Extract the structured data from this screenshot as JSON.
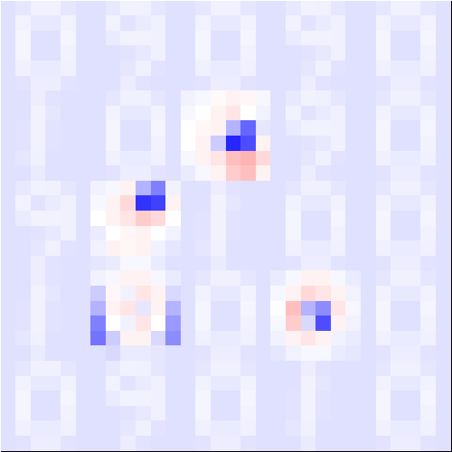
{
  "chart_data": {
    "type": "heatmap",
    "grid": true,
    "tick_labels": false,
    "legend": "none",
    "color_range": [
      -100,
      100
    ],
    "panels": [
      [
        [
          [
            -12,
            -10,
            -6,
            -6,
            -10,
            -12
          ],
          [
            -12,
            -5,
            -9,
            -9,
            -5,
            -12
          ],
          [
            -12,
            -4,
            -12,
            -12,
            -4,
            -12
          ],
          [
            -12,
            -4,
            -12,
            -12,
            -5,
            -12
          ],
          [
            -12,
            -6,
            -8,
            -8,
            -6,
            -12
          ],
          [
            -12,
            -11,
            -7,
            -7,
            -11,
            -12
          ]
        ],
        [
          [
            -12,
            -9,
            -5,
            -6,
            -10,
            -12
          ],
          [
            -12,
            -5,
            -11,
            -8,
            -6,
            -12
          ],
          [
            -12,
            -8,
            -5,
            -5,
            -6,
            -12
          ],
          [
            -12,
            -12,
            -11,
            -9,
            -6,
            -12
          ],
          [
            -12,
            -12,
            -10,
            -6,
            -11,
            -12
          ],
          [
            -12,
            -12,
            -7,
            -11,
            -12,
            -12
          ]
        ],
        [
          [
            -12,
            -10,
            -6,
            -6,
            -10,
            -12
          ],
          [
            -12,
            -5,
            -9,
            -9,
            -5,
            -12
          ],
          [
            -12,
            -4,
            -12,
            -12,
            -4,
            -12
          ],
          [
            -12,
            -4,
            -12,
            -12,
            -5,
            -12
          ],
          [
            -12,
            -6,
            -8,
            -8,
            -6,
            -12
          ],
          [
            -12,
            -11,
            -7,
            -7,
            -11,
            -12
          ]
        ],
        [
          [
            -12,
            -9,
            -5,
            -6,
            -10,
            -12
          ],
          [
            -12,
            -5,
            -11,
            -8,
            -6,
            -12
          ],
          [
            -12,
            -8,
            -5,
            -5,
            -6,
            -12
          ],
          [
            -12,
            -12,
            -11,
            -9,
            -6,
            -12
          ],
          [
            -12,
            -12,
            -10,
            -6,
            -11,
            -12
          ],
          [
            -12,
            -12,
            -7,
            -11,
            -12,
            -12
          ]
        ],
        [
          [
            -12,
            -10,
            -6,
            -6,
            -10,
            -12
          ],
          [
            -12,
            -5,
            -9,
            -9,
            -5,
            -12
          ],
          [
            -12,
            -4,
            -12,
            -12,
            -4,
            -12
          ],
          [
            -12,
            -4,
            -12,
            -12,
            -5,
            -12
          ],
          [
            -12,
            -6,
            -8,
            -8,
            -6,
            -12
          ],
          [
            -12,
            -11,
            -7,
            -7,
            -11,
            -12
          ]
        ]
      ],
      [
        [
          [
            -12,
            -12,
            -7,
            -11,
            -12,
            -12
          ],
          [
            -12,
            -12,
            -5,
            -10,
            -12,
            -12
          ],
          [
            -12,
            -11,
            -5,
            -11,
            -12,
            -12
          ],
          [
            -12,
            -11,
            -5,
            -11,
            -12,
            -12
          ],
          [
            -12,
            -10,
            -6,
            -12,
            -12,
            -12
          ],
          [
            -12,
            -12,
            -8,
            -12,
            -12,
            -12
          ]
        ],
        [
          [
            -12,
            -10,
            -6,
            -6,
            -10,
            -12
          ],
          [
            -12,
            -5,
            -9,
            -9,
            -5,
            -12
          ],
          [
            -12,
            -4,
            -12,
            -12,
            -4,
            -12
          ],
          [
            -12,
            -4,
            -12,
            -12,
            -5,
            -12
          ],
          [
            -12,
            -6,
            -8,
            -8,
            -6,
            -12
          ],
          [
            -12,
            -11,
            -7,
            -7,
            -11,
            -12
          ]
        ],
        [
          [
            -5,
            -3,
            2,
            5,
            3,
            -3
          ],
          [
            -3,
            0,
            5,
            10,
            0,
            -5
          ],
          [
            0,
            3,
            5,
            -30,
            -60,
            -10
          ],
          [
            0,
            5,
            -20,
            -85,
            -70,
            5
          ],
          [
            -3,
            5,
            10,
            25,
            30,
            15
          ],
          [
            -8,
            -3,
            5,
            20,
            25,
            5
          ]
        ],
        [
          [
            -12,
            -9,
            -5,
            -6,
            -10,
            -12
          ],
          [
            -12,
            -5,
            -11,
            -8,
            -6,
            -12
          ],
          [
            -12,
            -8,
            -5,
            -5,
            -6,
            -12
          ],
          [
            -12,
            -12,
            -11,
            -9,
            -6,
            -12
          ],
          [
            -12,
            -12,
            -10,
            -6,
            -11,
            -12
          ],
          [
            -12,
            -12,
            -7,
            -11,
            -12,
            -12
          ]
        ],
        [
          [
            -12,
            -10,
            -6,
            -6,
            -10,
            -12
          ],
          [
            -12,
            -5,
            -9,
            -9,
            -5,
            -12
          ],
          [
            -12,
            -4,
            -12,
            -12,
            -4,
            -12
          ],
          [
            -12,
            -4,
            -12,
            -12,
            -5,
            -12
          ],
          [
            -12,
            -6,
            -8,
            -8,
            -6,
            -12
          ],
          [
            -12,
            -11,
            -7,
            -7,
            -11,
            -12
          ]
        ]
      ],
      [
        [
          [
            -12,
            -9,
            -5,
            -6,
            -10,
            -12
          ],
          [
            -12,
            -5,
            -11,
            -8,
            -6,
            -12
          ],
          [
            -12,
            -8,
            -5,
            -5,
            -6,
            -12
          ],
          [
            -12,
            -12,
            -11,
            -9,
            -6,
            -12
          ],
          [
            -12,
            -12,
            -10,
            -6,
            -11,
            -12
          ],
          [
            -12,
            -12,
            -7,
            -11,
            -12,
            -12
          ]
        ],
        [
          [
            -5,
            -3,
            5,
            -30,
            -50,
            -5
          ],
          [
            -3,
            5,
            15,
            -80,
            -75,
            5
          ],
          [
            0,
            5,
            10,
            20,
            15,
            0
          ],
          [
            -8,
            0,
            3,
            5,
            0,
            -5
          ],
          [
            -5,
            5,
            3,
            5,
            -5,
            -10
          ],
          [
            -10,
            -8,
            -3,
            -3,
            -8,
            -12
          ]
        ],
        [
          [
            -12,
            -12,
            -7,
            -11,
            -12,
            -12
          ],
          [
            -12,
            -12,
            -5,
            -10,
            -12,
            -12
          ],
          [
            -12,
            -11,
            -5,
            -11,
            -12,
            -12
          ],
          [
            -12,
            -11,
            -5,
            -11,
            -12,
            -12
          ],
          [
            -12,
            -10,
            -6,
            -12,
            -12,
            -12
          ],
          [
            -12,
            -12,
            -8,
            -12,
            -12,
            -12
          ]
        ],
        [
          [
            -12,
            -10,
            -6,
            -6,
            -10,
            -12
          ],
          [
            -12,
            -5,
            -9,
            -9,
            -5,
            -12
          ],
          [
            -12,
            -4,
            -12,
            -12,
            -4,
            -12
          ],
          [
            -12,
            -4,
            -12,
            -12,
            -5,
            -12
          ],
          [
            -12,
            -6,
            -8,
            -8,
            -6,
            -12
          ],
          [
            -12,
            -11,
            -7,
            -7,
            -11,
            -12
          ]
        ],
        [
          [
            -12,
            -10,
            -6,
            -6,
            -10,
            -12
          ],
          [
            -12,
            -5,
            -9,
            -9,
            -5,
            -12
          ],
          [
            -12,
            -4,
            -12,
            -12,
            -4,
            -12
          ],
          [
            -12,
            -4,
            -12,
            -12,
            -5,
            -12
          ],
          [
            -12,
            -6,
            -8,
            -8,
            -6,
            -12
          ],
          [
            -12,
            -11,
            -7,
            -7,
            -11,
            -12
          ]
        ]
      ],
      [
        [
          [
            -12,
            -12,
            -7,
            -11,
            -12,
            -12
          ],
          [
            -12,
            -12,
            -5,
            -10,
            -12,
            -12
          ],
          [
            -12,
            -11,
            -5,
            -11,
            -12,
            -12
          ],
          [
            -12,
            -11,
            -5,
            -11,
            -12,
            -12
          ],
          [
            -12,
            -10,
            -6,
            -12,
            -12,
            -12
          ],
          [
            -12,
            -12,
            -8,
            -12,
            -12,
            -12
          ]
        ],
        [
          [
            -5,
            -3,
            5,
            5,
            -3,
            -8
          ],
          [
            -20,
            3,
            -5,
            10,
            5,
            -15
          ],
          [
            -30,
            5,
            10,
            -10,
            5,
            -30
          ],
          [
            -50,
            0,
            -5,
            10,
            0,
            -40
          ],
          [
            -55,
            -20,
            5,
            5,
            -15,
            -45
          ],
          [
            -12,
            -15,
            -8,
            -8,
            -10,
            -12
          ]
        ],
        [
          [
            -12,
            -10,
            -6,
            -6,
            -10,
            -12
          ],
          [
            -12,
            -5,
            -9,
            -9,
            -5,
            -12
          ],
          [
            -12,
            -4,
            -12,
            -12,
            -4,
            -12
          ],
          [
            -12,
            -4,
            -12,
            -12,
            -5,
            -12
          ],
          [
            -12,
            -6,
            -8,
            -8,
            -6,
            -12
          ],
          [
            -12,
            -11,
            -7,
            -7,
            -11,
            -12
          ]
        ],
        [
          [
            -8,
            -3,
            5,
            5,
            -3,
            -8
          ],
          [
            -3,
            5,
            15,
            10,
            5,
            -5
          ],
          [
            0,
            25,
            -30,
            -45,
            10,
            -3
          ],
          [
            -3,
            20,
            -15,
            -70,
            5,
            -5
          ],
          [
            -5,
            5,
            10,
            5,
            -5,
            -8
          ],
          [
            -10,
            -5,
            -3,
            -3,
            -8,
            -10
          ]
        ],
        [
          [
            -12,
            -10,
            -6,
            -6,
            -10,
            -12
          ],
          [
            -12,
            -5,
            -9,
            -9,
            -5,
            -12
          ],
          [
            -12,
            -4,
            -12,
            -12,
            -4,
            -12
          ],
          [
            -12,
            -4,
            -12,
            -12,
            -5,
            -12
          ],
          [
            -12,
            -6,
            -8,
            -8,
            -6,
            -12
          ],
          [
            -12,
            -11,
            -7,
            -7,
            -11,
            -12
          ]
        ]
      ],
      [
        [
          [
            -12,
            -10,
            -6,
            -6,
            -10,
            -12
          ],
          [
            -12,
            -5,
            -9,
            -9,
            -5,
            -12
          ],
          [
            -12,
            -4,
            -12,
            -12,
            -4,
            -12
          ],
          [
            -12,
            -4,
            -12,
            -12,
            -5,
            -12
          ],
          [
            -12,
            -6,
            -8,
            -8,
            -6,
            -12
          ],
          [
            -12,
            -11,
            -7,
            -7,
            -11,
            -12
          ]
        ],
        [
          [
            -12,
            -9,
            -5,
            -6,
            -10,
            -12
          ],
          [
            -12,
            -5,
            -11,
            -8,
            -6,
            -12
          ],
          [
            -12,
            -8,
            -5,
            -5,
            -6,
            -12
          ],
          [
            -12,
            -12,
            -11,
            -9,
            -6,
            -12
          ],
          [
            -12,
            -12,
            -10,
            -6,
            -11,
            -12
          ],
          [
            -12,
            -12,
            -7,
            -11,
            -12,
            -12
          ]
        ],
        [
          [
            -12,
            -10,
            -6,
            -6,
            -10,
            -12
          ],
          [
            -12,
            -5,
            -9,
            -9,
            -5,
            -12
          ],
          [
            -12,
            -4,
            -12,
            -12,
            -4,
            -12
          ],
          [
            -12,
            -4,
            -12,
            -12,
            -5,
            -12
          ],
          [
            -12,
            -6,
            -8,
            -8,
            -6,
            -12
          ],
          [
            -12,
            -11,
            -7,
            -7,
            -11,
            -12
          ]
        ],
        [
          [
            -12,
            -12,
            -7,
            -11,
            -12,
            -12
          ],
          [
            -12,
            -12,
            -5,
            -10,
            -12,
            -12
          ],
          [
            -12,
            -11,
            -5,
            -11,
            -12,
            -12
          ],
          [
            -12,
            -11,
            -5,
            -11,
            -12,
            -12
          ],
          [
            -12,
            -10,
            -6,
            -12,
            -12,
            -12
          ],
          [
            -12,
            -12,
            -8,
            -12,
            -12,
            -12
          ]
        ],
        [
          [
            -12,
            -10,
            -6,
            -6,
            -10,
            -12
          ],
          [
            -12,
            -5,
            -9,
            -9,
            -5,
            -12
          ],
          [
            -12,
            -4,
            -12,
            -12,
            -4,
            -12
          ],
          [
            -12,
            -4,
            -12,
            -12,
            -5,
            -12
          ],
          [
            -12,
            -6,
            -8,
            -8,
            -6,
            -12
          ],
          [
            -12,
            -11,
            -7,
            -7,
            -11,
            -12
          ]
        ]
      ]
    ]
  }
}
